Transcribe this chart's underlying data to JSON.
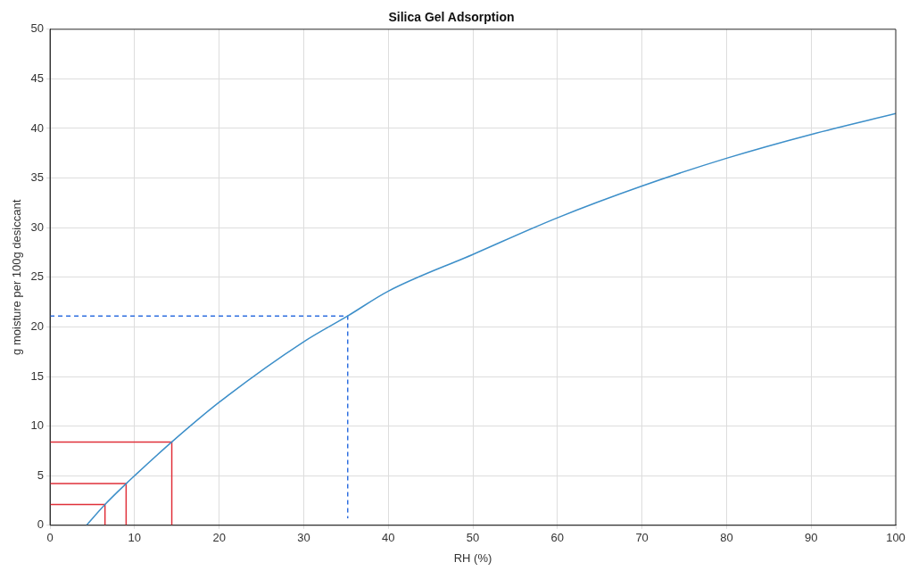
{
  "chart_data": {
    "type": "line",
    "title": "Silica Gel Adsorption",
    "xlabel": "RH (%)",
    "ylabel": "g moisture per 100g desiccant",
    "xlim": [
      0,
      100
    ],
    "ylim": [
      0,
      50
    ],
    "xticks": [
      0,
      10,
      20,
      30,
      40,
      50,
      60,
      70,
      80,
      90,
      100
    ],
    "yticks": [
      0,
      5,
      10,
      15,
      20,
      25,
      30,
      35,
      40,
      45,
      50
    ],
    "grid": true,
    "legend": false,
    "marker": "none",
    "series": [
      {
        "color": "#3d8fc9",
        "x": [
          4.3,
          6.5,
          9,
          10,
          14.4,
          20,
          30,
          35.2,
          40,
          50,
          60,
          70,
          80,
          90,
          100
        ],
        "values": [
          0,
          2.1,
          4.2,
          5,
          8.4,
          12.4,
          18.5,
          21.1,
          23.6,
          27.3,
          31,
          34.2,
          37,
          39.4,
          41.5
        ],
        "line_style": "solid"
      },
      {
        "color": "#e0303a",
        "x": [
          0,
          6.5,
          6.5
        ],
        "values": [
          2.1,
          2.1,
          0
        ],
        "line_style": "solid"
      },
      {
        "color": "#e0303a",
        "x": [
          0,
          9,
          9
        ],
        "values": [
          4.2,
          4.2,
          0
        ],
        "line_style": "solid"
      },
      {
        "color": "#e0303a",
        "x": [
          0,
          14.4,
          14.4
        ],
        "values": [
          8.4,
          8.4,
          0
        ],
        "line_style": "solid"
      },
      {
        "color": "#2f6fe0",
        "x": [
          0,
          35.2,
          35.2
        ],
        "values": [
          21.1,
          21.1,
          0.7
        ],
        "line_style": "dashed"
      }
    ]
  }
}
